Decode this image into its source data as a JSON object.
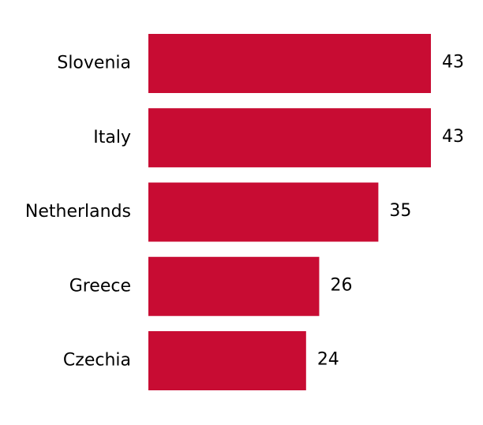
{
  "chart_data": {
    "type": "hbar",
    "categories": [
      "Slovenia",
      "Italy",
      "Netherlands",
      "Greece",
      "Czechia"
    ],
    "values": [
      43,
      43,
      35,
      26,
      24
    ],
    "color": "#c80c33"
  }
}
